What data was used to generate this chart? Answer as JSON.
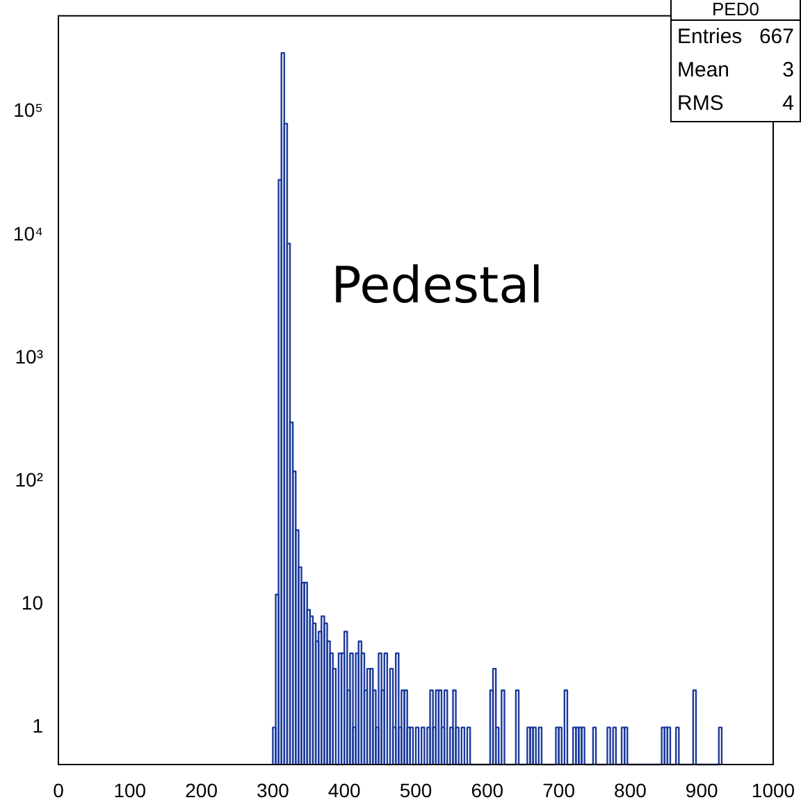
{
  "chart_data": {
    "type": "histogram",
    "color": "#1b3a9c",
    "log": "y",
    "grid": false,
    "legend": false,
    "bins": [
      300,
      304,
      308,
      312,
      316,
      320,
      324,
      328,
      332,
      336,
      340,
      344,
      348,
      352,
      356,
      360,
      364,
      368,
      372,
      376,
      380,
      384,
      388,
      392,
      396,
      400,
      404,
      408,
      412,
      416,
      420,
      424,
      428,
      432,
      436,
      440,
      444,
      448,
      452,
      456,
      460,
      464,
      468,
      472,
      476,
      480,
      484,
      488,
      492,
      496,
      500,
      504,
      508,
      512,
      516,
      520,
      524,
      528,
      532,
      536,
      540,
      544,
      548,
      552,
      556,
      560,
      564,
      568,
      572,
      576,
      604,
      608,
      612,
      616,
      620,
      624,
      640,
      644,
      656,
      660,
      664,
      668,
      672,
      676,
      696,
      700,
      704,
      708,
      712,
      720,
      724,
      728,
      732,
      736,
      748,
      752,
      768,
      772,
      776,
      780,
      788,
      792,
      796,
      844,
      848,
      852,
      856,
      864,
      868,
      888,
      892,
      924,
      928
    ],
    "values": [
      1,
      12,
      28000,
      300000,
      80000,
      8500,
      300,
      120,
      40,
      20,
      15,
      15,
      9,
      8,
      7,
      5,
      6,
      8,
      7,
      5,
      4,
      3,
      null,
      4,
      4,
      6,
      2,
      4,
      1,
      4,
      5,
      4,
      2,
      3,
      3,
      2,
      1,
      4,
      2,
      4,
      null,
      3,
      1,
      4,
      1,
      2,
      2,
      1,
      1,
      null,
      1,
      null,
      1,
      null,
      1,
      2,
      1,
      2,
      2,
      1,
      2,
      null,
      1,
      2,
      1,
      null,
      1,
      null,
      1,
      null,
      2,
      3,
      1,
      null,
      2,
      null,
      2,
      null,
      1,
      1,
      1,
      null,
      1,
      null,
      1,
      1,
      null,
      2,
      null,
      1,
      1,
      1,
      1,
      null,
      1,
      null,
      1,
      null,
      1,
      null,
      1,
      1,
      null,
      1,
      1,
      1,
      null,
      1,
      null,
      2,
      null,
      1
    ],
    "xlim": [
      0,
      1000
    ],
    "xticks": [
      0,
      100,
      200,
      300,
      400,
      500,
      600,
      700,
      800,
      900,
      1000
    ],
    "ylim": [
      0.5,
      600000
    ],
    "yticks": [
      1,
      10,
      {
        "value": 100,
        "label": "10²"
      },
      {
        "value": 1000,
        "label": "10³"
      },
      {
        "value": 10000,
        "label": "10⁴"
      },
      {
        "value": 100000,
        "label": "10⁵"
      }
    ],
    "annotations": [
      "Pedestal",
      "PED0",
      "Entries",
      "667",
      "Mean",
      "3",
      "RMS",
      "4"
    ]
  }
}
